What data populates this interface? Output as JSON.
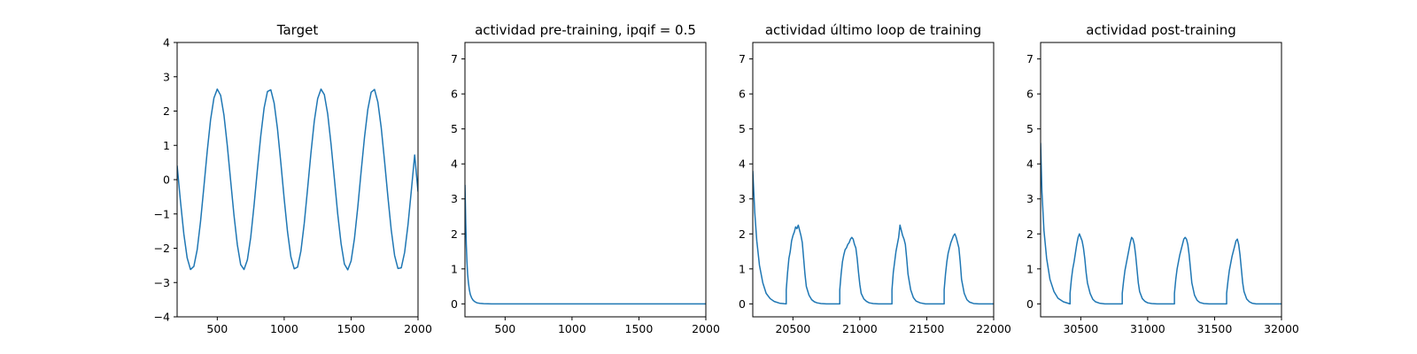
{
  "chart_data": [
    {
      "type": "line",
      "title": "Target",
      "xlabel": "",
      "ylabel": "",
      "xlim": [
        200,
        2000
      ],
      "ylim": [
        -4,
        4
      ],
      "xticks": [
        500,
        1000,
        1500,
        2000
      ],
      "yticks": [
        -4,
        -3,
        -2,
        -1,
        0,
        1,
        2,
        3,
        4
      ],
      "ytick_labels": [
        "−4",
        "−3",
        "−2",
        "−1",
        "0",
        "1",
        "2",
        "3",
        "4"
      ],
      "grid": false,
      "color": "#1f77b4",
      "series": [
        {
          "x": [
            200,
            225,
            250,
            275,
            300,
            325,
            350,
            375,
            400,
            425,
            450,
            475,
            500,
            525,
            550,
            575,
            600,
            625,
            650,
            675,
            700,
            725,
            750,
            775,
            800,
            825,
            850,
            875,
            900,
            925,
            950,
            975,
            1000,
            1025,
            1050,
            1075,
            1100,
            1125,
            1150,
            1175,
            1200,
            1225,
            1250,
            1275,
            1300,
            1325,
            1350,
            1375,
            1400,
            1425,
            1450,
            1475,
            1500,
            1525,
            1550,
            1575,
            1600,
            1625,
            1650,
            1675,
            1700,
            1725,
            1750,
            1775,
            1800,
            1825,
            1850,
            1875,
            1900,
            1925,
            1950,
            1975,
            2000
          ],
          "y": [
            0.41,
            -0.63,
            -1.58,
            -2.28,
            -2.62,
            -2.53,
            -2.04,
            -1.22,
            -0.21,
            0.83,
            1.75,
            2.38,
            2.64,
            2.46,
            1.88,
            0.99,
            -0.03,
            -1.04,
            -1.9,
            -2.48,
            -2.62,
            -2.34,
            -1.68,
            -0.74,
            0.3,
            1.28,
            2.09,
            2.57,
            2.62,
            2.23,
            1.48,
            0.49,
            -0.56,
            -1.52,
            -2.25,
            -2.6,
            -2.55,
            -2.08,
            -1.27,
            -0.26,
            0.78,
            1.71,
            2.36,
            2.64,
            2.48,
            1.92,
            1.04,
            0.03,
            -1.0,
            -1.86,
            -2.46,
            -2.63,
            -2.37,
            -1.72,
            -0.8,
            0.24,
            1.23,
            2.05,
            2.55,
            2.63,
            2.26,
            1.52,
            0.54,
            -0.5,
            -1.47,
            -2.21,
            -2.59,
            -2.57,
            -2.12,
            -1.32,
            -0.32,
            0.72,
            -0.35
          ]
        }
      ]
    },
    {
      "type": "line",
      "title": "actividad pre-training, ipqif = 0.5",
      "xlabel": "",
      "ylabel": "",
      "xlim": [
        200,
        2000
      ],
      "ylim": [
        -0.37,
        7.47
      ],
      "xticks": [
        500,
        1000,
        1500,
        2000
      ],
      "yticks": [
        0,
        1,
        2,
        3,
        4,
        5,
        6,
        7
      ],
      "ytick_labels": [
        "0",
        "1",
        "2",
        "3",
        "4",
        "5",
        "6",
        "7"
      ],
      "grid": false,
      "color": "#1f77b4",
      "series": [
        {
          "x": [
            200,
            203,
            206,
            210,
            215,
            220,
            226,
            233,
            240,
            250,
            262,
            275,
            290,
            310,
            340,
            400,
            600,
            1000,
            1500,
            2000
          ],
          "y": [
            3.4,
            2.9,
            2.3,
            1.7,
            1.2,
            0.85,
            0.6,
            0.4,
            0.27,
            0.17,
            0.1,
            0.06,
            0.03,
            0.015,
            0.005,
            0.0,
            0.0,
            0.0,
            0.0,
            0.0
          ]
        }
      ]
    },
    {
      "type": "line",
      "title": "actividad último loop de training",
      "xlabel": "",
      "ylabel": "",
      "xlim": [
        20200,
        22000
      ],
      "ylim": [
        -0.37,
        7.47
      ],
      "xticks": [
        20500,
        21000,
        21500,
        22000
      ],
      "yticks": [
        0,
        1,
        2,
        3,
        4,
        5,
        6,
        7
      ],
      "ytick_labels": [
        "0",
        "1",
        "2",
        "3",
        "4",
        "5",
        "6",
        "7"
      ],
      "grid": false,
      "color": "#1f77b4",
      "series": [
        {
          "x": [
            20200,
            20215,
            20230,
            20250,
            20275,
            20300,
            20330,
            20360,
            20400,
            20450,
            20450,
            20460,
            20470,
            20480,
            20490,
            20500,
            20510,
            20520,
            20530,
            20540,
            20550,
            20560,
            20570,
            20580,
            20590,
            20600,
            20620,
            20640,
            20660,
            20680,
            20710,
            20750,
            20800,
            20850,
            20850,
            20860,
            20870,
            20880,
            20890,
            20900,
            20910,
            20920,
            20930,
            20940,
            20950,
            20960,
            20970,
            20980,
            20990,
            21000,
            21010,
            21030,
            21050,
            21070,
            21100,
            21140,
            21200,
            21240,
            21240,
            21250,
            21260,
            21270,
            21280,
            21290,
            21300,
            21310,
            21320,
            21330,
            21340,
            21350,
            21360,
            21380,
            21400,
            21420,
            21450,
            21490,
            21550,
            21630,
            21630,
            21640,
            21650,
            21660,
            21670,
            21680,
            21690,
            21700,
            21710,
            21720,
            21730,
            21740,
            21750,
            21760,
            21780,
            21800,
            21820,
            21850,
            21890,
            21950,
            22000
          ],
          "y": [
            3.8,
            2.6,
            1.8,
            1.1,
            0.6,
            0.3,
            0.15,
            0.07,
            0.02,
            0.0,
            0.4,
            0.9,
            1.3,
            1.5,
            1.8,
            1.95,
            2.05,
            2.2,
            2.15,
            2.25,
            2.1,
            1.95,
            1.75,
            1.3,
            0.85,
            0.5,
            0.25,
            0.12,
            0.06,
            0.03,
            0.01,
            0.0,
            0.0,
            0.0,
            0.4,
            0.85,
            1.2,
            1.4,
            1.55,
            1.6,
            1.7,
            1.75,
            1.85,
            1.9,
            1.85,
            1.7,
            1.6,
            1.3,
            0.9,
            0.55,
            0.3,
            0.14,
            0.07,
            0.03,
            0.01,
            0.0,
            0.0,
            0.0,
            0.4,
            0.9,
            1.2,
            1.5,
            1.7,
            1.9,
            2.25,
            2.1,
            1.95,
            1.85,
            1.7,
            1.3,
            0.85,
            0.4,
            0.18,
            0.08,
            0.03,
            0.0,
            0.0,
            0.0,
            0.4,
            0.85,
            1.2,
            1.45,
            1.6,
            1.75,
            1.85,
            1.95,
            2.0,
            1.9,
            1.75,
            1.6,
            1.2,
            0.7,
            0.3,
            0.12,
            0.05,
            0.01,
            0.0,
            0.0,
            0.0
          ]
        }
      ]
    },
    {
      "type": "line",
      "title": "actividad post-training",
      "xlabel": "",
      "ylabel": "",
      "xlim": [
        30200,
        32000
      ],
      "ylim": [
        -0.37,
        7.47
      ],
      "xticks": [
        30500,
        31000,
        31500,
        32000
      ],
      "yticks": [
        0,
        1,
        2,
        3,
        4,
        5,
        6,
        7
      ],
      "ytick_labels": [
        "0",
        "1",
        "2",
        "3",
        "4",
        "5",
        "6",
        "7"
      ],
      "grid": false,
      "color": "#1f77b4",
      "series": [
        {
          "x": [
            30200,
            30210,
            30225,
            30245,
            30270,
            30300,
            30330,
            30370,
            30420,
            30420,
            30430,
            30440,
            30450,
            30460,
            30470,
            30480,
            30490,
            30500,
            30510,
            30520,
            30530,
            30540,
            30550,
            30570,
            30590,
            30610,
            30640,
            30680,
            30740,
            30810,
            30810,
            30820,
            30830,
            30840,
            30850,
            30860,
            30870,
            30880,
            30890,
            30900,
            30910,
            30920,
            30930,
            30940,
            30960,
            30980,
            31000,
            31030,
            31070,
            31130,
            31200,
            31200,
            31210,
            31220,
            31230,
            31240,
            31250,
            31260,
            31270,
            31280,
            31290,
            31300,
            31310,
            31320,
            31330,
            31350,
            31370,
            31390,
            31420,
            31460,
            31520,
            31590,
            31590,
            31600,
            31610,
            31620,
            31630,
            31640,
            31650,
            31660,
            31670,
            31680,
            31690,
            31700,
            31710,
            31720,
            31740,
            31760,
            31780,
            31810,
            31850,
            31920,
            32000
          ],
          "y": [
            4.6,
            3.2,
            2.1,
            1.3,
            0.7,
            0.35,
            0.16,
            0.06,
            0.0,
            0.3,
            0.7,
            1.0,
            1.2,
            1.45,
            1.7,
            1.9,
            2.0,
            1.9,
            1.8,
            1.6,
            1.3,
            0.9,
            0.6,
            0.3,
            0.13,
            0.06,
            0.02,
            0.0,
            0.0,
            0.0,
            0.3,
            0.65,
            0.95,
            1.15,
            1.35,
            1.55,
            1.75,
            1.9,
            1.85,
            1.7,
            1.4,
            1.0,
            0.6,
            0.35,
            0.15,
            0.07,
            0.03,
            0.01,
            0.0,
            0.0,
            0.0,
            0.3,
            0.7,
            1.0,
            1.2,
            1.4,
            1.55,
            1.7,
            1.85,
            1.9,
            1.85,
            1.7,
            1.4,
            1.0,
            0.6,
            0.25,
            0.1,
            0.04,
            0.01,
            0.0,
            0.0,
            0.0,
            0.3,
            0.65,
            0.95,
            1.15,
            1.35,
            1.5,
            1.65,
            1.8,
            1.85,
            1.7,
            1.4,
            1.0,
            0.6,
            0.35,
            0.14,
            0.06,
            0.02,
            0.0,
            0.0,
            0.0,
            0.0
          ]
        }
      ]
    }
  ]
}
